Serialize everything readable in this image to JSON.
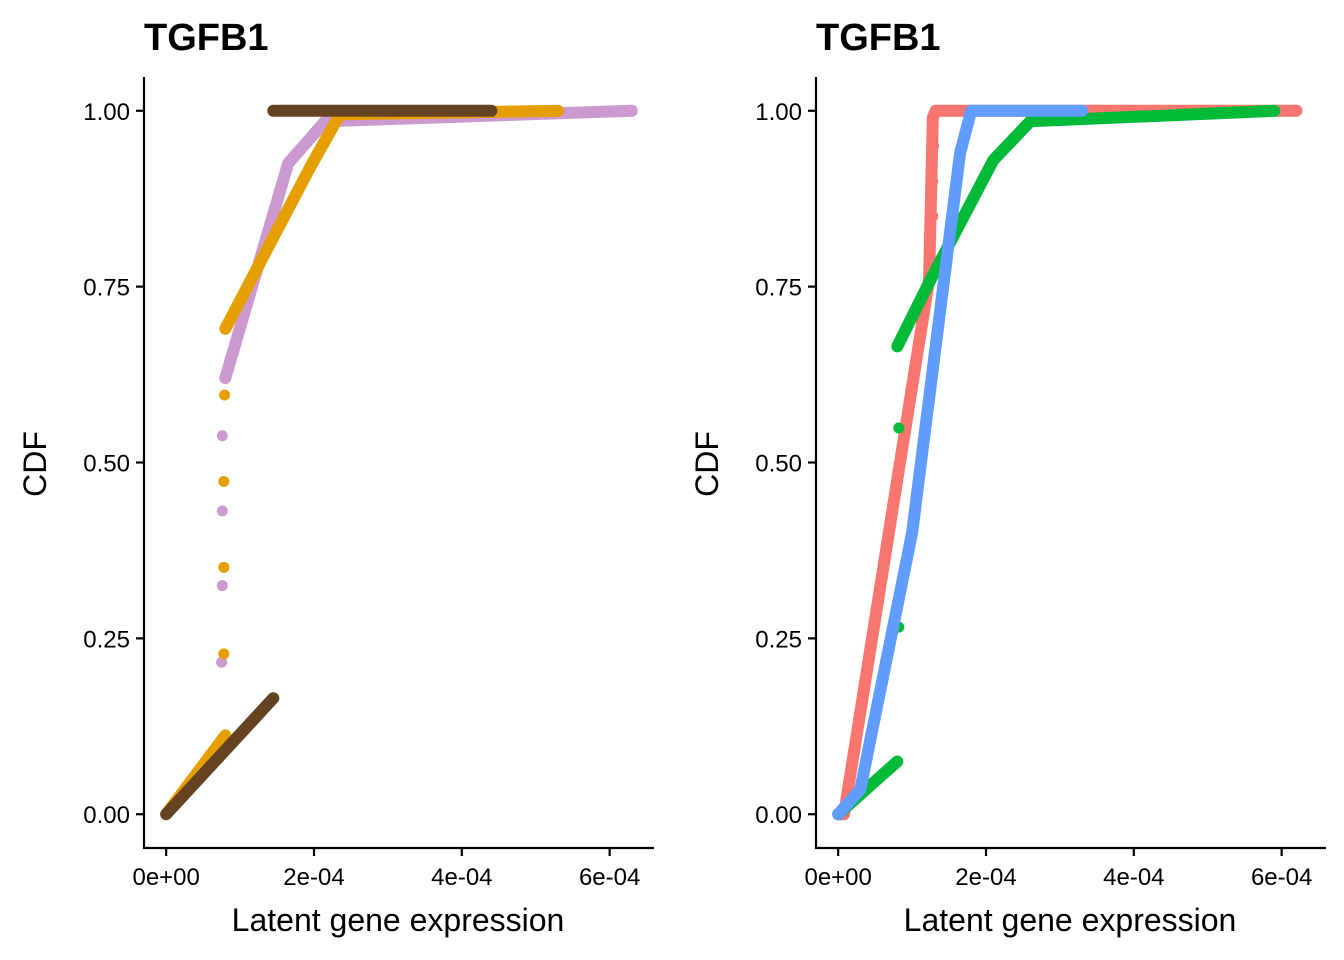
{
  "chart_data": [
    {
      "type": "line",
      "title": "TGFB1",
      "xlabel": "Latent gene expression",
      "ylabel": "CDF",
      "xlim": [
        -3e-05,
        0.00066
      ],
      "ylim": [
        -0.048,
        1.048
      ],
      "xticks": [
        0,
        0.0002,
        0.0004,
        0.0006
      ],
      "xtick_labels": [
        "0e+00",
        "2e-04",
        "4e-04",
        "6e-04"
      ],
      "yticks": [
        0,
        0.25,
        0.5,
        0.75,
        1
      ],
      "ytick_labels": [
        "0.00",
        "0.25",
        "0.50",
        "0.75",
        "1.00"
      ],
      "grid": false,
      "legend": "none",
      "series": [
        {
          "color": "#CC99D1",
          "segments": [
            [
              [
                8e-05,
                0.62
              ],
              [
                0.000165,
                0.925
              ],
              [
                0.000215,
                0.985
              ],
              [
                0.00063,
                1.0
              ]
            ]
          ],
          "points": [
            [
              7.5e-05,
              0.216
            ],
            [
              7.6e-05,
              0.325
            ],
            [
              7.6e-05,
              0.431
            ],
            [
              7.6e-05,
              0.538
            ]
          ]
        },
        {
          "color": "#E69F00",
          "segments": [
            [
              [
                0.0,
                0.0
              ],
              [
                8e-05,
                0.112
              ]
            ],
            [
              [
                8e-05,
                0.69
              ],
              [
                0.000195,
                0.92
              ],
              [
                0.000235,
                0.995
              ],
              [
                0.00053,
                1.0
              ]
            ]
          ],
          "points": [
            [
              7.8e-05,
              0.228
            ],
            [
              7.8e-05,
              0.351
            ],
            [
              7.8e-05,
              0.473
            ],
            [
              7.9e-05,
              0.596
            ]
          ]
        },
        {
          "color": "#654321",
          "segments": [
            [
              [
                0.0,
                0.0
              ],
              [
                0.000145,
                0.165
              ]
            ],
            [
              [
                0.000145,
                1.0
              ],
              [
                0.00044,
                1.0
              ]
            ]
          ],
          "points": []
        }
      ]
    },
    {
      "type": "line",
      "title": "TGFB1",
      "xlabel": "Latent gene expression",
      "ylabel": "CDF",
      "xlim": [
        -3e-05,
        0.00066
      ],
      "ylim": [
        -0.048,
        1.048
      ],
      "xticks": [
        0,
        0.0002,
        0.0004,
        0.0006
      ],
      "xtick_labels": [
        "0e+00",
        "2e-04",
        "4e-04",
        "6e-04"
      ],
      "yticks": [
        0,
        0.25,
        0.5,
        0.75,
        1
      ],
      "ytick_labels": [
        "0.00",
        "0.25",
        "0.50",
        "0.75",
        "1.00"
      ],
      "grid": false,
      "legend": "none",
      "series": [
        {
          "color": "#F8766D",
          "segments": [
            [
              [
                0.0,
                0.0
              ],
              [
                8e-06,
                0.0
              ],
              [
                0.000123,
                0.76
              ],
              [
                0.000128,
                0.99
              ],
              [
                0.000132,
                1.0
              ],
              [
                0.00062,
                1.0
              ]
            ]
          ],
          "points": [
            [
              0.000128,
              0.85
            ],
            [
              0.000128,
              0.9
            ],
            [
              0.000129,
              0.95
            ]
          ]
        },
        {
          "color": "#00BA38",
          "segments": [
            [
              [
                0.0,
                0.0
              ],
              [
                8e-05,
                0.075
              ]
            ],
            [
              [
                8e-05,
                0.665
              ],
              [
                0.000125,
                0.76
              ],
              [
                0.00021,
                0.93
              ],
              [
                0.00026,
                0.985
              ],
              [
                0.00059,
                1.0
              ]
            ]
          ],
          "points": [
            [
              8.2e-05,
              0.549
            ],
            [
              8.2e-05,
              0.266
            ]
          ]
        },
        {
          "color": "#619CFF",
          "segments": [
            [
              [
                0.0,
                0.0
              ],
              [
                3e-05,
                0.035
              ],
              [
                0.0001,
                0.4
              ],
              [
                0.000165,
                0.94
              ],
              [
                0.00018,
                1.0
              ],
              [
                0.00033,
                1.0
              ]
            ]
          ],
          "points": []
        }
      ]
    }
  ]
}
